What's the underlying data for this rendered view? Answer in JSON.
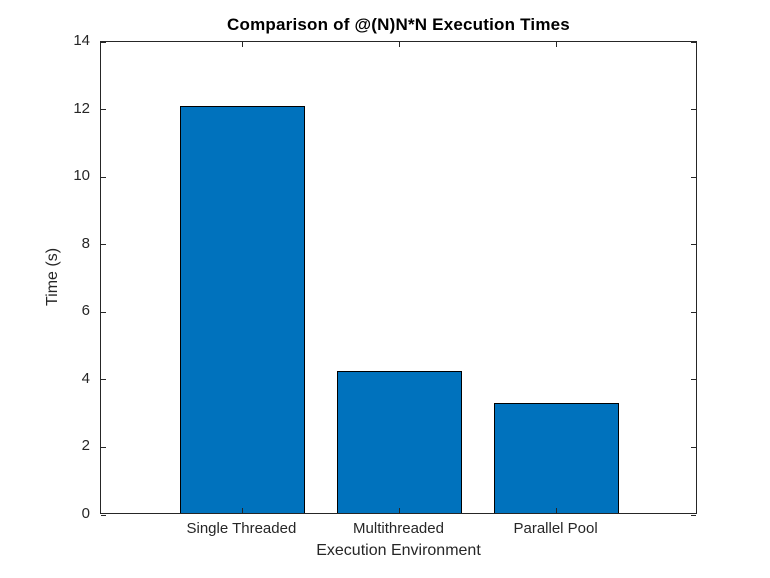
{
  "chart_data": {
    "type": "bar",
    "title": "Comparison of @(N)N*N Execution Times",
    "xlabel": "Execution Environment",
    "ylabel": "Time (s)",
    "categories": [
      "Single Threaded",
      "Multithreaded",
      "Parallel Pool"
    ],
    "x": [
      1,
      2,
      3
    ],
    "values": [
      12.05,
      4.2,
      3.25
    ],
    "xlim": [
      0.1,
      3.9
    ],
    "ylim": [
      0,
      14
    ],
    "yticks": [
      0,
      2,
      4,
      6,
      8,
      10,
      12,
      14
    ],
    "bar_width": 0.8,
    "grid": "off",
    "legend": "none",
    "tick_direction": "in",
    "bar_color": "#0072BD",
    "bar_edge_color": "#000000",
    "axis_color": "#262626",
    "tick_label_color": "#262626",
    "title_color": "#000000",
    "label_color": "#262626",
    "background": "#ffffff"
  }
}
